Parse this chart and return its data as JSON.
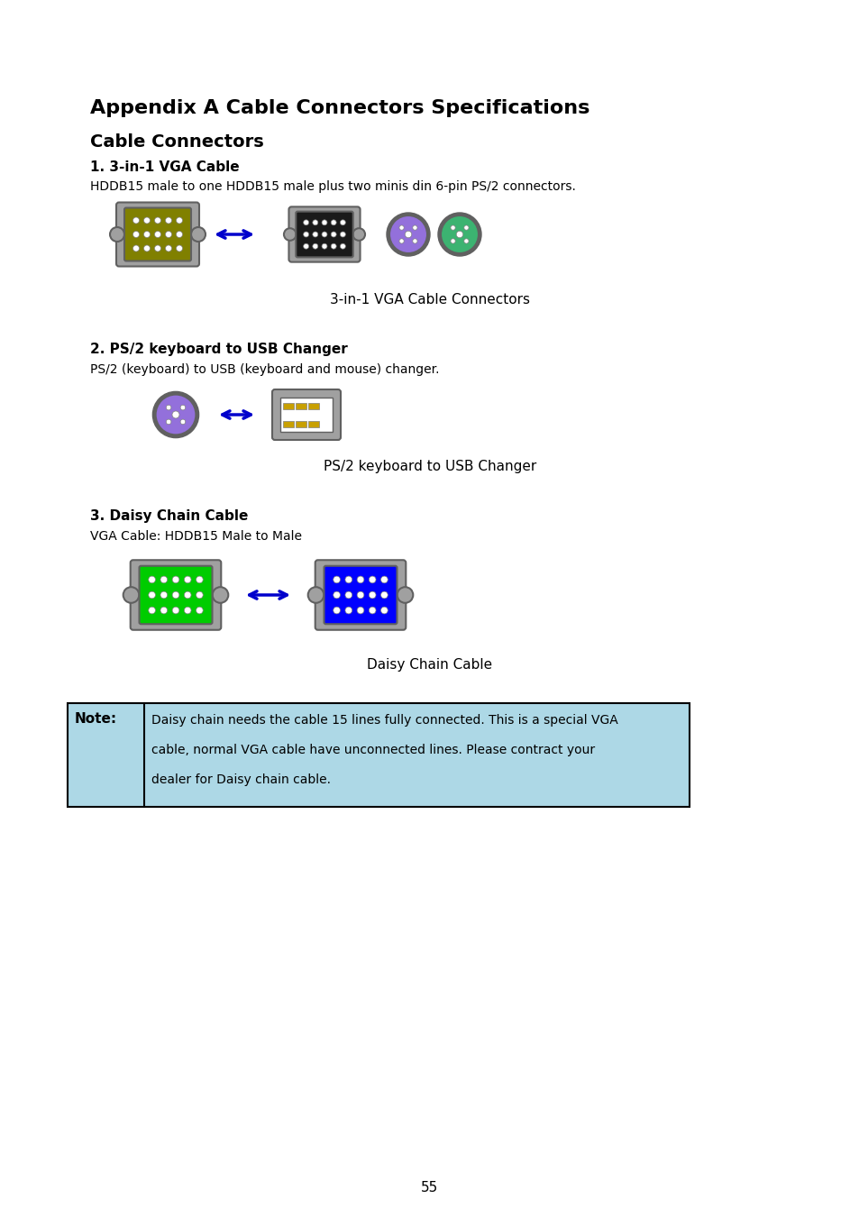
{
  "title": "Appendix A Cable Connectors Specifications",
  "subtitle": "Cable Connectors",
  "section1_bold": "1. 3-in-1 VGA Cable",
  "section1_desc": "HDDB15 male to one HDDB15 male plus two minis din 6-pin PS/2 connectors.",
  "section1_caption": "3-in-1 VGA Cable Connectors",
  "section2_bold": "2. PS/2 keyboard to USB Changer",
  "section2_desc": "PS/2 (keyboard) to USB (keyboard and mouse) changer.",
  "section2_caption": "PS/2 keyboard to USB Changer",
  "section3_bold": "3. Daisy Chain Cable",
  "section3_desc": "VGA Cable: HDDB15 Male to Male",
  "section3_caption": "Daisy Chain Cable",
  "note_label": "Note:",
  "note_text": "Daisy chain needs the cable 15 lines fully connected. This is a special VGA\n\ncable, normal VGA cable have unconnected lines. Please contract your\n\ndealer for Daisy chain cable.",
  "page_number": "55",
  "bg_color": "#ffffff",
  "note_bg_color": "#add8e6",
  "note_border_color": "#000000",
  "arrow_color": "#0000cc",
  "vga_olive_color": "#808000",
  "vga_black_color": "#1a1a1a",
  "vga_green_color": "#00cc00",
  "vga_blue_color": "#0000ff",
  "ps2_purple_color": "#9370db",
  "ps2_green_color": "#3cb371",
  "connector_gray": "#a0a0a0",
  "connector_dark": "#606060"
}
